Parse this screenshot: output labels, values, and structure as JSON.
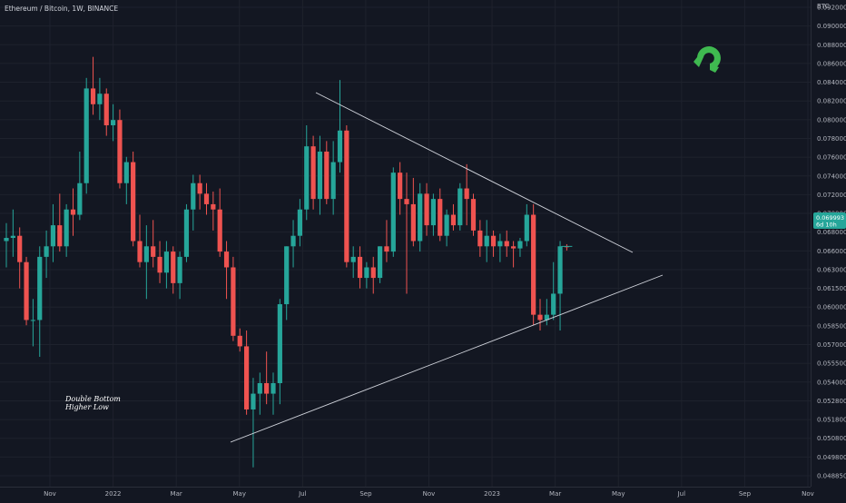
{
  "header": {
    "symbol": "Ethereum / Bitcoin, 1W, BINANCE"
  },
  "colors": {
    "background": "#131722",
    "grid": "#1e222d",
    "up": "#26a69a",
    "down": "#ef5350",
    "trendline": "#d1d4dc",
    "logo": "#3fb950"
  },
  "icons": {
    "logo": "magnet-icon"
  },
  "annotation": {
    "line1": "Double Bottom",
    "line2": "Higher Low"
  },
  "price_badge": {
    "value": "0.069993",
    "countdown": "6d 10h"
  },
  "chart_data": {
    "type": "candlestick",
    "title": "Ethereum / Bitcoin, 1W, BINANCE",
    "y_unit": "BTC",
    "ylim": [
      0.0482,
      0.0928
    ],
    "grid": true,
    "x_ticks": [
      "Nov",
      "2022",
      "Mar",
      "May",
      "Jul",
      "Sep",
      "Nov",
      "2023",
      "Mar",
      "May",
      "Jul",
      "Sep",
      "Nov"
    ],
    "y_ticks": [
      "0.092000",
      "0.090000",
      "0.088000",
      "0.086000",
      "0.084000",
      "0.082000",
      "0.080000",
      "0.078000",
      "0.076000",
      "0.074000",
      "0.072000",
      "0.070000",
      "0.068000",
      "0.066000",
      "0.063000",
      "0.061500",
      "0.060000",
      "0.058500",
      "0.057000",
      "0.055500",
      "0.054000",
      "0.052800",
      "0.051800",
      "0.050800",
      "0.049800",
      "0.048850"
    ],
    "last_price": 0.069993,
    "candles": [
      {
        "o": 0.0705,
        "h": 0.0722,
        "l": 0.068,
        "c": 0.0708
      },
      {
        "o": 0.0708,
        "h": 0.0735,
        "l": 0.069,
        "c": 0.071
      },
      {
        "o": 0.071,
        "h": 0.0718,
        "l": 0.066,
        "c": 0.0685
      },
      {
        "o": 0.0685,
        "h": 0.069,
        "l": 0.0625,
        "c": 0.063
      },
      {
        "o": 0.063,
        "h": 0.065,
        "l": 0.0605,
        "c": 0.063
      },
      {
        "o": 0.063,
        "h": 0.07,
        "l": 0.0595,
        "c": 0.069
      },
      {
        "o": 0.069,
        "h": 0.0715,
        "l": 0.067,
        "c": 0.07
      },
      {
        "o": 0.07,
        "h": 0.074,
        "l": 0.0685,
        "c": 0.072
      },
      {
        "o": 0.072,
        "h": 0.075,
        "l": 0.0695,
        "c": 0.07
      },
      {
        "o": 0.07,
        "h": 0.074,
        "l": 0.069,
        "c": 0.0735
      },
      {
        "o": 0.0735,
        "h": 0.0755,
        "l": 0.071,
        "c": 0.073
      },
      {
        "o": 0.073,
        "h": 0.079,
        "l": 0.0725,
        "c": 0.076
      },
      {
        "o": 0.076,
        "h": 0.086,
        "l": 0.075,
        "c": 0.085
      },
      {
        "o": 0.085,
        "h": 0.088,
        "l": 0.0825,
        "c": 0.0835
      },
      {
        "o": 0.0835,
        "h": 0.086,
        "l": 0.082,
        "c": 0.0845
      },
      {
        "o": 0.0845,
        "h": 0.085,
        "l": 0.0805,
        "c": 0.0815
      },
      {
        "o": 0.0815,
        "h": 0.0835,
        "l": 0.08,
        "c": 0.082
      },
      {
        "o": 0.082,
        "h": 0.083,
        "l": 0.0755,
        "c": 0.076
      },
      {
        "o": 0.076,
        "h": 0.0785,
        "l": 0.074,
        "c": 0.078
      },
      {
        "o": 0.078,
        "h": 0.079,
        "l": 0.07,
        "c": 0.0705
      },
      {
        "o": 0.0705,
        "h": 0.073,
        "l": 0.068,
        "c": 0.0685
      },
      {
        "o": 0.0685,
        "h": 0.072,
        "l": 0.065,
        "c": 0.07
      },
      {
        "o": 0.07,
        "h": 0.0725,
        "l": 0.068,
        "c": 0.069
      },
      {
        "o": 0.069,
        "h": 0.0705,
        "l": 0.0665,
        "c": 0.0675
      },
      {
        "o": 0.0675,
        "h": 0.0705,
        "l": 0.066,
        "c": 0.0695
      },
      {
        "o": 0.0695,
        "h": 0.07,
        "l": 0.0655,
        "c": 0.0665
      },
      {
        "o": 0.0665,
        "h": 0.0695,
        "l": 0.065,
        "c": 0.069
      },
      {
        "o": 0.069,
        "h": 0.074,
        "l": 0.0685,
        "c": 0.0735
      },
      {
        "o": 0.0735,
        "h": 0.0768,
        "l": 0.0715,
        "c": 0.076
      },
      {
        "o": 0.076,
        "h": 0.0768,
        "l": 0.0735,
        "c": 0.075
      },
      {
        "o": 0.075,
        "h": 0.076,
        "l": 0.073,
        "c": 0.074
      },
      {
        "o": 0.074,
        "h": 0.0752,
        "l": 0.0715,
        "c": 0.0735
      },
      {
        "o": 0.0735,
        "h": 0.0755,
        "l": 0.069,
        "c": 0.0695
      },
      {
        "o": 0.0695,
        "h": 0.0705,
        "l": 0.065,
        "c": 0.068
      },
      {
        "o": 0.068,
        "h": 0.069,
        "l": 0.061,
        "c": 0.0615
      },
      {
        "o": 0.0615,
        "h": 0.0622,
        "l": 0.06,
        "c": 0.0605
      },
      {
        "o": 0.0605,
        "h": 0.062,
        "l": 0.054,
        "c": 0.0545
      },
      {
        "o": 0.0545,
        "h": 0.0575,
        "l": 0.049,
        "c": 0.056
      },
      {
        "o": 0.056,
        "h": 0.058,
        "l": 0.054,
        "c": 0.057
      },
      {
        "o": 0.057,
        "h": 0.06,
        "l": 0.055,
        "c": 0.056
      },
      {
        "o": 0.056,
        "h": 0.058,
        "l": 0.054,
        "c": 0.057
      },
      {
        "o": 0.057,
        "h": 0.065,
        "l": 0.055,
        "c": 0.0645
      },
      {
        "o": 0.0645,
        "h": 0.07,
        "l": 0.063,
        "c": 0.07
      },
      {
        "o": 0.07,
        "h": 0.0725,
        "l": 0.068,
        "c": 0.071
      },
      {
        "o": 0.071,
        "h": 0.0745,
        "l": 0.07,
        "c": 0.0735
      },
      {
        "o": 0.0735,
        "h": 0.0815,
        "l": 0.0725,
        "c": 0.0795
      },
      {
        "o": 0.0795,
        "h": 0.0805,
        "l": 0.0735,
        "c": 0.0745
      },
      {
        "o": 0.0745,
        "h": 0.0805,
        "l": 0.073,
        "c": 0.079
      },
      {
        "o": 0.079,
        "h": 0.08,
        "l": 0.074,
        "c": 0.0745
      },
      {
        "o": 0.0745,
        "h": 0.08,
        "l": 0.073,
        "c": 0.078
      },
      {
        "o": 0.078,
        "h": 0.0858,
        "l": 0.077,
        "c": 0.081
      },
      {
        "o": 0.081,
        "h": 0.0815,
        "l": 0.068,
        "c": 0.0685
      },
      {
        "o": 0.0685,
        "h": 0.07,
        "l": 0.067,
        "c": 0.069
      },
      {
        "o": 0.069,
        "h": 0.07,
        "l": 0.066,
        "c": 0.067
      },
      {
        "o": 0.067,
        "h": 0.0685,
        "l": 0.066,
        "c": 0.068
      },
      {
        "o": 0.068,
        "h": 0.069,
        "l": 0.0655,
        "c": 0.067
      },
      {
        "o": 0.067,
        "h": 0.07,
        "l": 0.0665,
        "c": 0.07
      },
      {
        "o": 0.07,
        "h": 0.0725,
        "l": 0.0685,
        "c": 0.0695
      },
      {
        "o": 0.0695,
        "h": 0.0775,
        "l": 0.069,
        "c": 0.077
      },
      {
        "o": 0.077,
        "h": 0.078,
        "l": 0.073,
        "c": 0.0745
      },
      {
        "o": 0.0745,
        "h": 0.077,
        "l": 0.0655,
        "c": 0.074
      },
      {
        "o": 0.074,
        "h": 0.0765,
        "l": 0.07,
        "c": 0.0705
      },
      {
        "o": 0.0705,
        "h": 0.076,
        "l": 0.0695,
        "c": 0.075
      },
      {
        "o": 0.075,
        "h": 0.076,
        "l": 0.071,
        "c": 0.072
      },
      {
        "o": 0.072,
        "h": 0.075,
        "l": 0.071,
        "c": 0.0745
      },
      {
        "o": 0.0745,
        "h": 0.0755,
        "l": 0.0705,
        "c": 0.071
      },
      {
        "o": 0.071,
        "h": 0.0735,
        "l": 0.07,
        "c": 0.073
      },
      {
        "o": 0.073,
        "h": 0.074,
        "l": 0.0715,
        "c": 0.072
      },
      {
        "o": 0.072,
        "h": 0.076,
        "l": 0.0715,
        "c": 0.0755
      },
      {
        "o": 0.0755,
        "h": 0.0778,
        "l": 0.072,
        "c": 0.0745
      },
      {
        "o": 0.0745,
        "h": 0.075,
        "l": 0.071,
        "c": 0.0715
      },
      {
        "o": 0.0715,
        "h": 0.0725,
        "l": 0.069,
        "c": 0.07
      },
      {
        "o": 0.07,
        "h": 0.0725,
        "l": 0.0685,
        "c": 0.071
      },
      {
        "o": 0.071,
        "h": 0.0715,
        "l": 0.069,
        "c": 0.07
      },
      {
        "o": 0.07,
        "h": 0.0712,
        "l": 0.0685,
        "c": 0.0705
      },
      {
        "o": 0.0705,
        "h": 0.0715,
        "l": 0.069,
        "c": 0.07
      },
      {
        "o": 0.07,
        "h": 0.0705,
        "l": 0.068,
        "c": 0.0698
      },
      {
        "o": 0.0698,
        "h": 0.0708,
        "l": 0.069,
        "c": 0.0705
      },
      {
        "o": 0.0705,
        "h": 0.074,
        "l": 0.07,
        "c": 0.073
      },
      {
        "o": 0.073,
        "h": 0.074,
        "l": 0.0625,
        "c": 0.0635
      },
      {
        "o": 0.0635,
        "h": 0.065,
        "l": 0.062,
        "c": 0.063
      },
      {
        "o": 0.063,
        "h": 0.065,
        "l": 0.0625,
        "c": 0.0635
      },
      {
        "o": 0.0635,
        "h": 0.0685,
        "l": 0.063,
        "c": 0.0655
      },
      {
        "o": 0.0655,
        "h": 0.0705,
        "l": 0.062,
        "c": 0.07
      },
      {
        "o": 0.07,
        "h": 0.0702,
        "l": 0.0696,
        "c": 0.069993
      }
    ]
  }
}
